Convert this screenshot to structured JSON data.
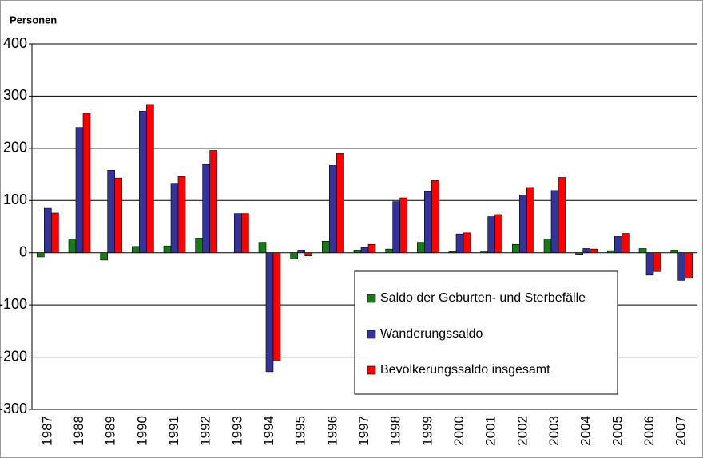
{
  "chart_data": {
    "type": "bar",
    "y_axis_label": "Personen",
    "categories": [
      "1987",
      "1988",
      "1989",
      "1990",
      "1991",
      "1992",
      "1993",
      "1994",
      "1995",
      "1996",
      "1997",
      "1998",
      "1999",
      "2000",
      "2001",
      "2002",
      "2003",
      "2004",
      "2005",
      "2006",
      "2007"
    ],
    "series": [
      {
        "name": "Saldo der Geburten- und Sterbefälle",
        "color": "#1a7a1a",
        "values": [
          -8,
          26,
          -14,
          12,
          13,
          28,
          0,
          20,
          -12,
          22,
          5,
          7,
          20,
          2,
          3,
          16,
          26,
          -3,
          4,
          8,
          5
        ]
      },
      {
        "name": "Wanderungssaldo",
        "color": "#33339a",
        "values": [
          85,
          240,
          158,
          271,
          133,
          169,
          75,
          -228,
          5,
          167,
          10,
          98,
          117,
          36,
          69,
          110,
          119,
          8,
          31,
          -43,
          -53
        ]
      },
      {
        "name": "Bevölkerungssaldo insgesamt",
        "color": "#ff0000",
        "values": [
          76,
          267,
          143,
          284,
          146,
          196,
          75,
          -207,
          -6,
          190,
          16,
          105,
          138,
          38,
          73,
          125,
          144,
          7,
          37,
          -36,
          -49
        ]
      }
    ],
    "ylim": [
      -300,
      400
    ],
    "yticks": [
      -300,
      -200,
      -100,
      0,
      100,
      200,
      300,
      400
    ],
    "grid": true,
    "legend": "lower right"
  }
}
